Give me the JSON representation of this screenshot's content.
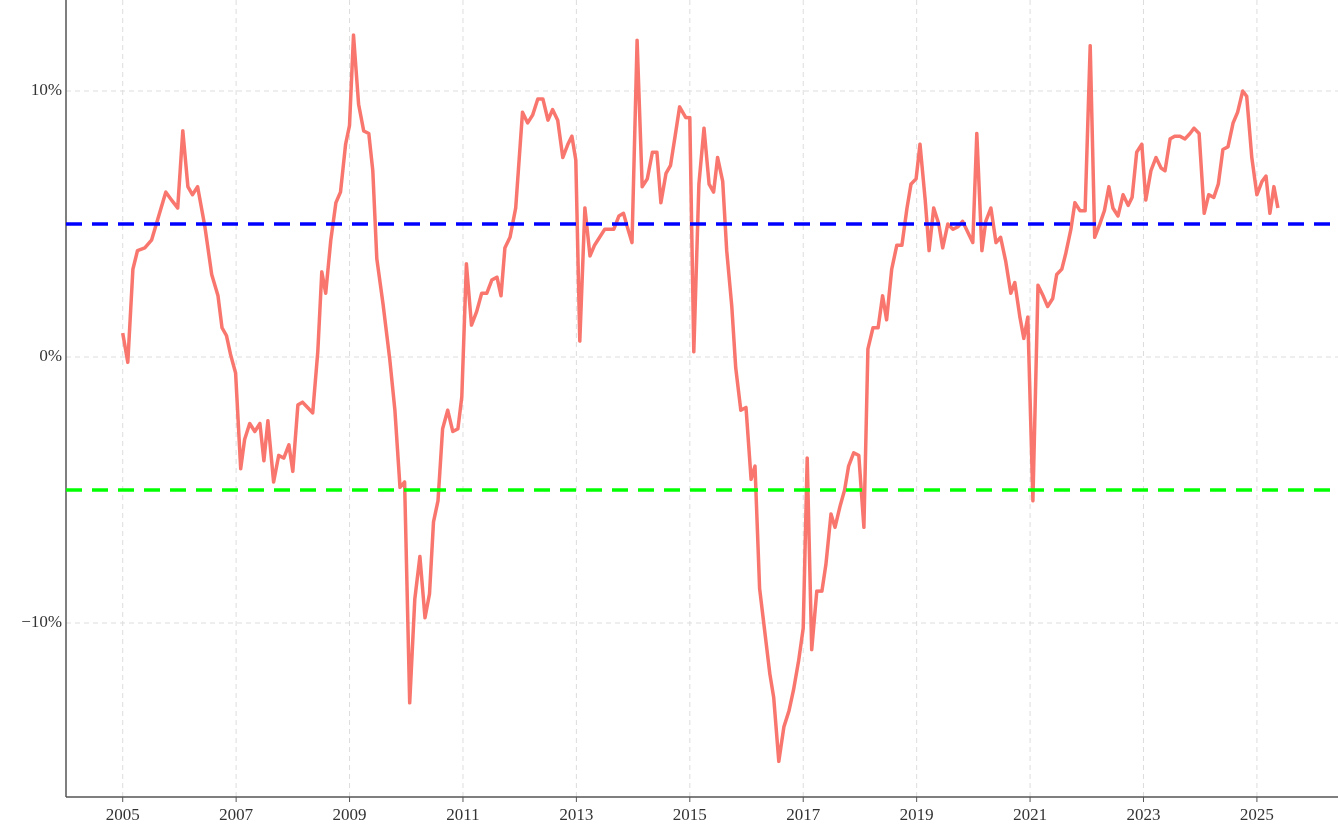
{
  "chart_data": {
    "type": "line",
    "x": [
      2005.0,
      2005.09,
      2005.18,
      2005.26,
      2005.39,
      2005.51,
      2005.62,
      2005.76,
      2005.86,
      2005.97,
      2006.06,
      2006.15,
      2006.23,
      2006.32,
      2006.45,
      2006.57,
      2006.68,
      2006.75,
      2006.83,
      2006.9,
      2006.99,
      2007.08,
      2007.15,
      2007.24,
      2007.33,
      2007.42,
      2007.49,
      2007.56,
      2007.66,
      2007.75,
      2007.84,
      2007.93,
      2008.0,
      2008.09,
      2008.17,
      2008.26,
      2008.35,
      2008.44,
      2008.51,
      2008.58,
      2008.67,
      2008.76,
      2008.84,
      2008.93,
      2009.0,
      2009.07,
      2009.16,
      2009.25,
      2009.34,
      2009.41,
      2009.48,
      2009.59,
      2009.71,
      2009.8,
      2009.89,
      2009.97,
      2010.06,
      2010.15,
      2010.24,
      2010.33,
      2010.41,
      2010.48,
      2010.56,
      2010.64,
      2010.73,
      2010.82,
      2010.91,
      2010.98,
      2011.06,
      2011.15,
      2011.24,
      2011.33,
      2011.42,
      2011.51,
      2011.6,
      2011.67,
      2011.74,
      2011.83,
      2011.93,
      2012.05,
      2012.14,
      2012.23,
      2012.32,
      2012.41,
      2012.5,
      2012.58,
      2012.67,
      2012.76,
      2012.85,
      2012.92,
      2012.99,
      2013.06,
      2013.15,
      2013.24,
      2013.32,
      2013.41,
      2013.5,
      2013.59,
      2013.66,
      2013.75,
      2013.83,
      2013.91,
      2013.98,
      2014.07,
      2014.16,
      2014.25,
      2014.34,
      2014.42,
      2014.49,
      2014.58,
      2014.66,
      2014.74,
      2014.82,
      2014.93,
      2015.0,
      2015.07,
      2015.16,
      2015.25,
      2015.34,
      2015.42,
      2015.49,
      2015.58,
      2015.65,
      2015.74,
      2015.81,
      2015.9,
      2015.99,
      2016.08,
      2016.15,
      2016.23,
      2016.32,
      2016.41,
      2016.48,
      2016.57,
      2016.66,
      2016.75,
      2016.83,
      2016.92,
      2017.0,
      2017.07,
      2017.15,
      2017.24,
      2017.33,
      2017.4,
      2017.49,
      2017.56,
      2017.65,
      2017.73,
      2017.8,
      2017.89,
      2017.98,
      2018.07,
      2018.14,
      2018.23,
      2018.32,
      2018.4,
      2018.47,
      2018.56,
      2018.65,
      2018.74,
      2018.83,
      2018.9,
      2018.99,
      2019.06,
      2019.15,
      2019.22,
      2019.3,
      2019.39,
      2019.46,
      2019.55,
      2019.64,
      2019.73,
      2019.81,
      2019.9,
      2019.99,
      2020.06,
      2020.15,
      2020.22,
      2020.31,
      2020.4,
      2020.48,
      2020.57,
      2020.66,
      2020.73,
      2020.82,
      2020.89,
      2020.96,
      2021.05,
      2021.14,
      2021.23,
      2021.31,
      2021.4,
      2021.47,
      2021.56,
      2021.63,
      2021.72,
      2021.79,
      2021.88,
      2021.97,
      2022.06,
      2022.14,
      2022.23,
      2022.31,
      2022.39,
      2022.46,
      2022.55,
      2022.64,
      2022.73,
      2022.8,
      2022.88,
      2022.97,
      2023.04,
      2023.13,
      2023.22,
      2023.31,
      2023.38,
      2023.47,
      2023.55,
      2023.64,
      2023.73,
      2023.82,
      2023.89,
      2023.98,
      2024.07,
      2024.15,
      2024.24,
      2024.32,
      2024.4,
      2024.49,
      2024.58,
      2024.66,
      2024.75,
      2024.82,
      2024.91,
      2025.0,
      2025.09,
      2025.16,
      2025.23,
      2025.3,
      2025.37
    ],
    "series": [
      {
        "color": "#f8766d",
        "values": [
          0.9,
          -0.2,
          3.3,
          4.0,
          4.1,
          4.4,
          5.2,
          6.2,
          5.9,
          5.6,
          8.5,
          6.4,
          6.1,
          6.4,
          4.9,
          3.1,
          2.3,
          1.1,
          0.8,
          0.1,
          -0.6,
          -4.2,
          -3.1,
          -2.5,
          -2.8,
          -2.5,
          -3.9,
          -2.4,
          -4.7,
          -3.7,
          -3.8,
          -3.3,
          -4.3,
          -1.8,
          -1.7,
          -1.9,
          -2.1,
          0.2,
          3.2,
          2.4,
          4.4,
          5.8,
          6.2,
          8.0,
          8.7,
          12.1,
          9.5,
          8.5,
          8.4,
          7.0,
          3.7,
          2.0,
          -0.1,
          -2.0,
          -4.9,
          -4.7,
          -13.0,
          -9.1,
          -7.5,
          -9.8,
          -8.9,
          -6.2,
          -5.4,
          -2.7,
          -2.0,
          -2.8,
          -2.7,
          -1.5,
          3.5,
          1.2,
          1.7,
          2.4,
          2.4,
          2.9,
          3.0,
          2.3,
          4.1,
          4.5,
          5.6,
          9.2,
          8.8,
          9.1,
          9.7,
          9.7,
          8.9,
          9.3,
          8.9,
          7.5,
          8.0,
          8.3,
          7.4,
          0.6,
          5.6,
          3.8,
          4.2,
          4.5,
          4.8,
          4.8,
          4.8,
          5.3,
          5.4,
          4.8,
          4.3,
          11.9,
          6.4,
          6.7,
          7.7,
          7.7,
          5.8,
          6.9,
          7.2,
          8.3,
          9.4,
          9.0,
          9.0,
          0.2,
          6.5,
          8.6,
          6.5,
          6.2,
          7.5,
          6.6,
          4.0,
          1.9,
          -0.4,
          -2.0,
          -1.9,
          -4.6,
          -4.1,
          -8.7,
          -10.3,
          -11.9,
          -12.8,
          -15.2,
          -13.9,
          -13.3,
          -12.5,
          -11.4,
          -10.2,
          -3.8,
          -11.0,
          -8.8,
          -8.8,
          -7.8,
          -5.9,
          -6.4,
          -5.6,
          -5.0,
          -4.1,
          -3.6,
          -3.7,
          -6.4,
          0.3,
          1.1,
          1.1,
          2.3,
          1.4,
          3.3,
          4.2,
          4.2,
          5.6,
          6.5,
          6.7,
          8.0,
          5.9,
          4.0,
          5.6,
          5.0,
          4.1,
          5.0,
          4.8,
          4.9,
          5.1,
          4.7,
          4.3,
          8.4,
          4.0,
          5.1,
          5.6,
          4.3,
          4.5,
          3.6,
          2.4,
          2.8,
          1.5,
          0.7,
          1.5,
          -5.4,
          2.7,
          2.3,
          1.9,
          2.2,
          3.1,
          3.3,
          3.9,
          4.8,
          5.8,
          5.5,
          5.5,
          11.7,
          4.5,
          5.0,
          5.5,
          6.4,
          5.6,
          5.3,
          6.1,
          5.7,
          6.0,
          7.7,
          8.0,
          5.9,
          7.0,
          7.5,
          7.1,
          7.0,
          8.2,
          8.3,
          8.3,
          8.2,
          8.4,
          8.6,
          8.4,
          5.4,
          6.1,
          6.0,
          6.5,
          7.8,
          7.9,
          8.8,
          9.2,
          10.0,
          9.8,
          7.5,
          6.1,
          6.6,
          6.8,
          5.4,
          6.4,
          5.6
        ]
      }
    ],
    "hlines": [
      {
        "value": 5,
        "color": "#0000ff"
      },
      {
        "value": -5,
        "color": "#00ff00"
      }
    ],
    "xlim": [
      2004.0,
      2026.43
    ],
    "ylim": [
      -16.54,
      13.42
    ],
    "xticks": [
      2005,
      2007,
      2009,
      2011,
      2013,
      2015,
      2017,
      2019,
      2021,
      2023,
      2025
    ],
    "yticks": [
      {
        "value": -10,
        "label": "−10%"
      },
      {
        "value": 0,
        "label": "0%"
      },
      {
        "value": 10,
        "label": "10%"
      }
    ],
    "grid": true
  }
}
